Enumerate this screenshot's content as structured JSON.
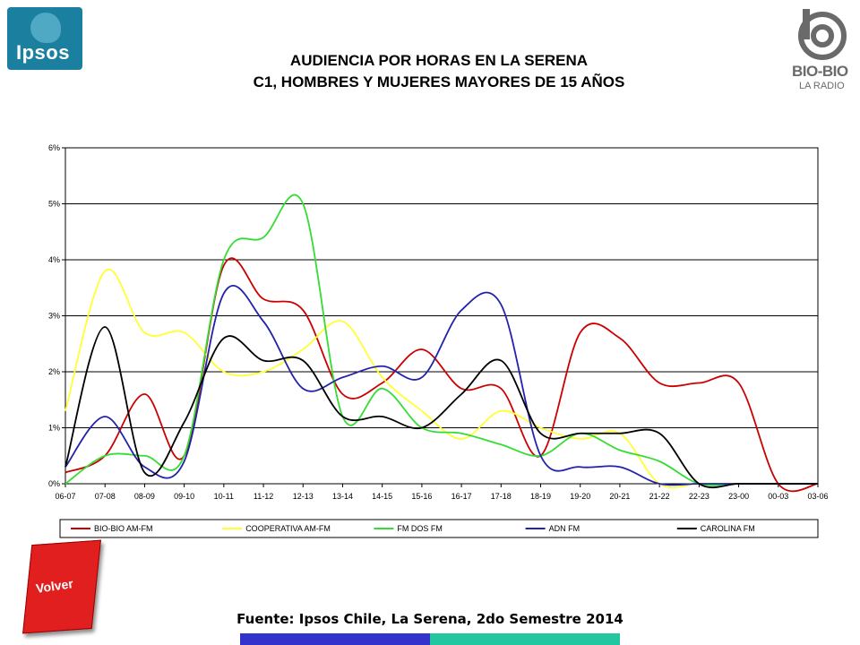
{
  "header": {
    "title_line1": "AUDIENCIA POR HORAS EN LA SERENA",
    "title_line2": "C1, HOMBRES Y MUJERES MAYORES DE 15 AÑOS",
    "ipsos_logo_text": "Ipsos",
    "biobio_logo_text": "BIO-BIO",
    "biobio_logo_sub": "LA RADIO"
  },
  "footer": {
    "back_button_label": "Volver",
    "source": "Fuente: Ipsos Chile, La Serena, 2do Semestre 2014"
  },
  "colors": {
    "ipsos_brand": "#1b7f9f",
    "back_button": "#e11f1f",
    "footer_bar_left": "#3333cc",
    "footer_bar_right": "#22c7a0"
  },
  "chart_data": {
    "type": "line",
    "title": "",
    "xlabel": "",
    "ylabel": "",
    "ylim": [
      0,
      6
    ],
    "yticks": [
      0,
      1,
      2,
      3,
      4,
      5,
      6
    ],
    "ytick_labels": [
      "0%",
      "1%",
      "2%",
      "3%",
      "4%",
      "5%",
      "6%"
    ],
    "grid": true,
    "legend_position": "bottom",
    "categories": [
      "06-07",
      "07-08",
      "08-09",
      "09-10",
      "10-11",
      "11-12",
      "12-13",
      "13-14",
      "14-15",
      "15-16",
      "16-17",
      "17-18",
      "18-19",
      "19-20",
      "20-21",
      "21-22",
      "22-23",
      "23-00",
      "00-03",
      "03-06"
    ],
    "series": [
      {
        "name": "BIO-BIO AM-FM",
        "color": "#cc0000",
        "values": [
          0.2,
          0.5,
          1.6,
          0.5,
          3.9,
          3.3,
          3.1,
          1.6,
          1.8,
          2.4,
          1.7,
          1.7,
          0.5,
          2.7,
          2.6,
          1.8,
          1.8,
          1.8,
          0.0,
          0.0
        ]
      },
      {
        "name": "COOPERATIVA AM-FM",
        "color": "#ffff33",
        "values": [
          1.3,
          3.8,
          2.7,
          2.7,
          2.0,
          2.0,
          2.4,
          2.9,
          1.9,
          1.3,
          0.8,
          1.3,
          1.0,
          0.8,
          0.9,
          0.0,
          0.0,
          0.0,
          0.0,
          0.0
        ]
      },
      {
        "name": "FM DOS FM",
        "color": "#33dd33",
        "values": [
          0.0,
          0.5,
          0.5,
          0.5,
          4.0,
          4.4,
          5.0,
          1.2,
          1.7,
          1.0,
          0.9,
          0.7,
          0.5,
          0.9,
          0.6,
          0.4,
          0.0,
          0.0,
          0.0,
          0.0
        ]
      },
      {
        "name": "ADN FM",
        "color": "#2222aa",
        "values": [
          0.3,
          1.2,
          0.3,
          0.4,
          3.4,
          2.9,
          1.7,
          1.9,
          2.1,
          1.9,
          3.1,
          3.2,
          0.5,
          0.3,
          0.3,
          0.0,
          0.0,
          0.0,
          0.0,
          0.0
        ]
      },
      {
        "name": "CAROLINA FM",
        "color": "#000000",
        "values": [
          0.3,
          2.8,
          0.2,
          1.1,
          2.6,
          2.2,
          2.2,
          1.2,
          1.2,
          1.0,
          1.6,
          2.2,
          0.9,
          0.9,
          0.9,
          0.9,
          0.0,
          0.0,
          0.0,
          0.0
        ]
      }
    ]
  }
}
